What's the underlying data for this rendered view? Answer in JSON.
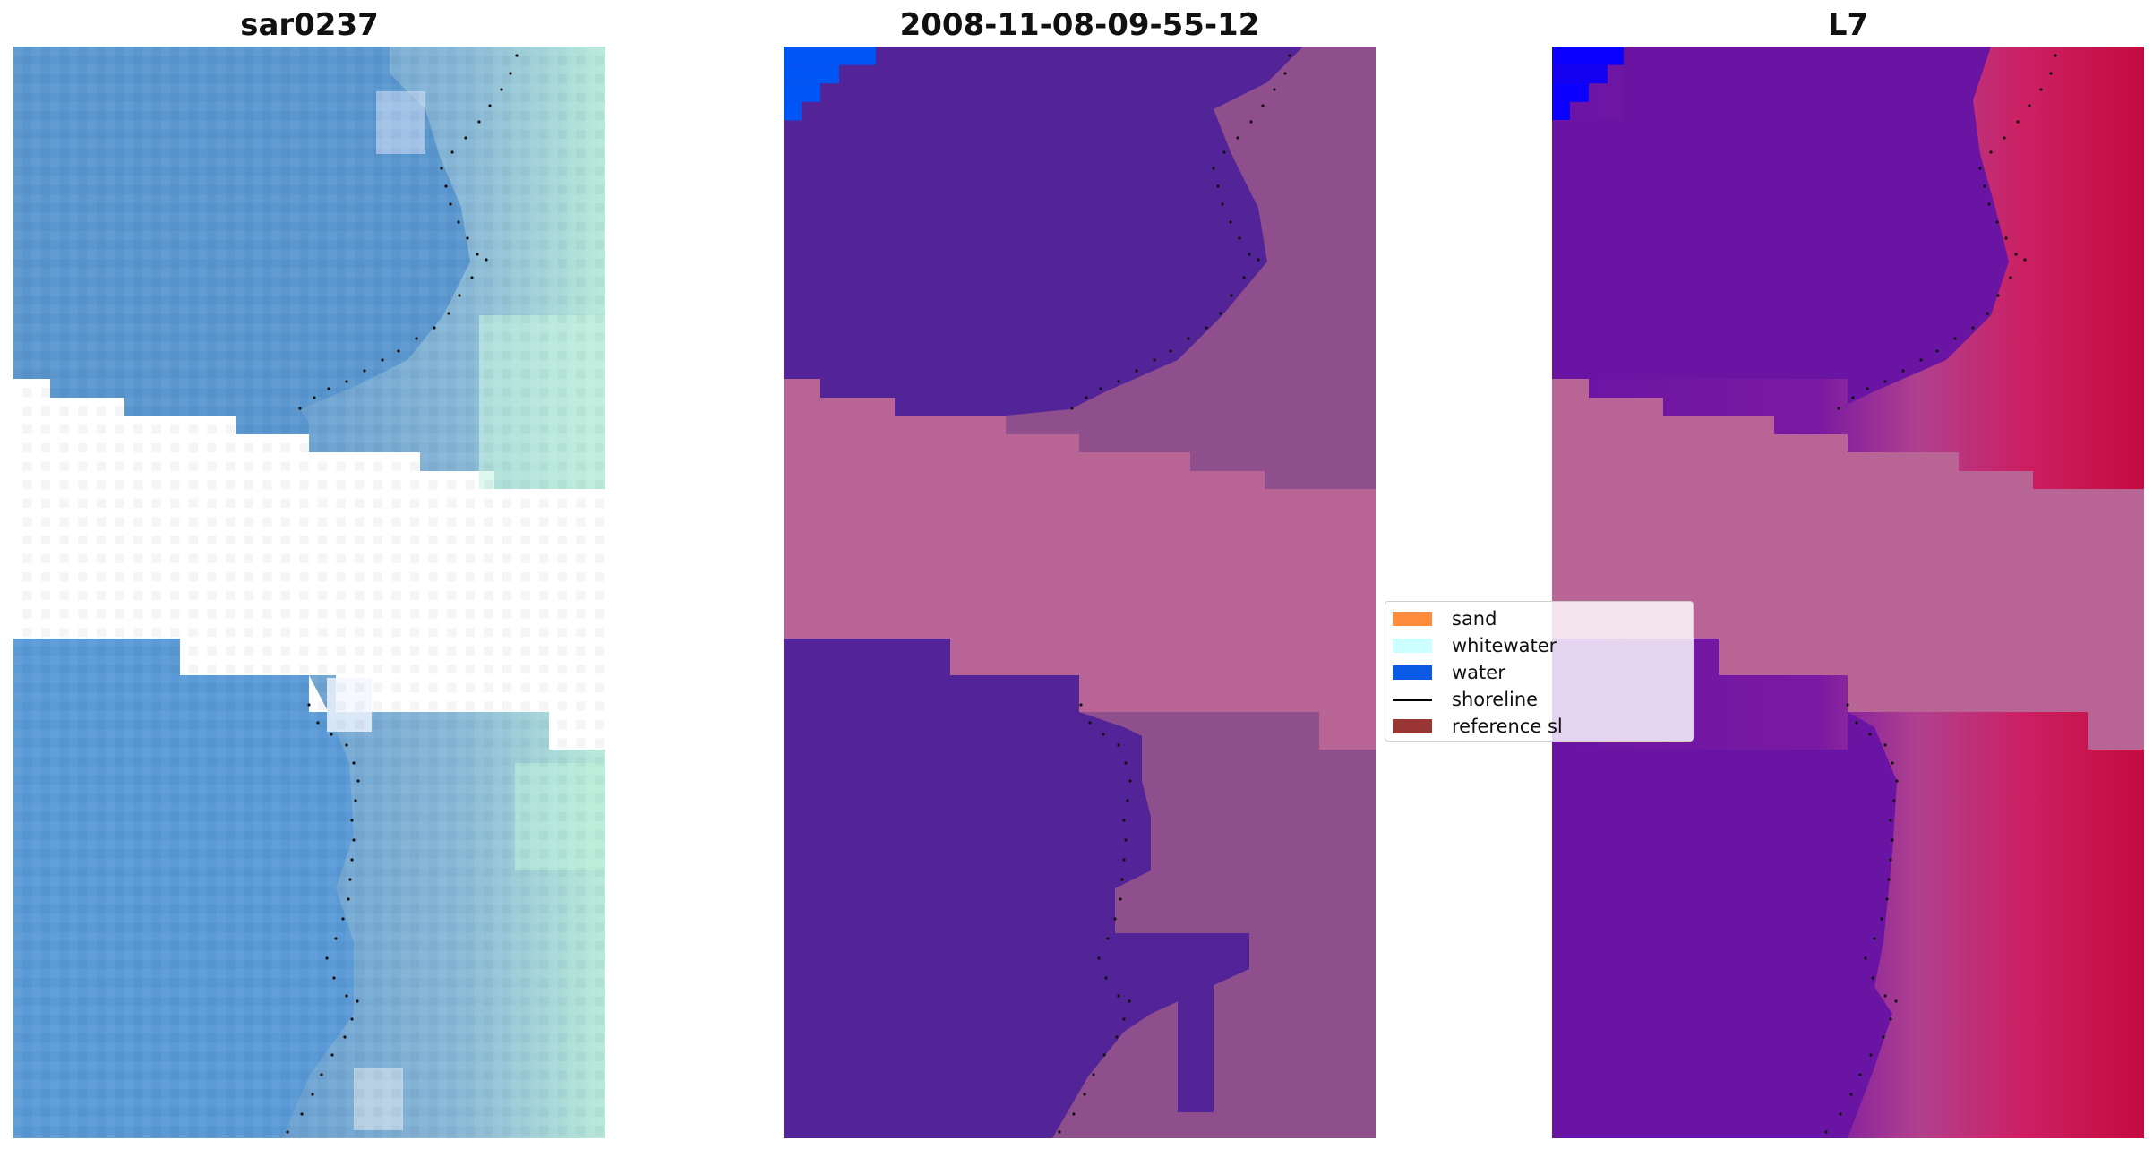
{
  "figure": {
    "panels": [
      {
        "id": "rgb",
        "title": "sar0237"
      },
      {
        "id": "classification",
        "title": "2008-11-08-09-55-12"
      },
      {
        "id": "index",
        "title": "L7"
      }
    ],
    "legend": {
      "items": [
        {
          "label": "sand",
          "color": "#ff8c3a",
          "kind": "swatch"
        },
        {
          "label": "whitewater",
          "color": "#ccffff",
          "kind": "swatch"
        },
        {
          "label": "water",
          "color": "#0a5ae6",
          "kind": "swatch"
        },
        {
          "label": "shoreline",
          "color": "#000000",
          "kind": "line"
        },
        {
          "label": "reference sl",
          "color": "#9a3535",
          "kind": "swatch"
        }
      ]
    },
    "colors": {
      "rgb_water": "#5b97cf",
      "rgb_shore": "#9ec3d8",
      "rgb_bright": "#bff0dc",
      "class_water": "#522498",
      "class_land": "#8f4e8c",
      "class_nodata": "#b86495",
      "class_blue": "#0055f5",
      "index_water": "#6a14a4",
      "index_land": "#cc1753",
      "index_nodata": "#b86495",
      "index_blue": "#0b00ff"
    }
  }
}
